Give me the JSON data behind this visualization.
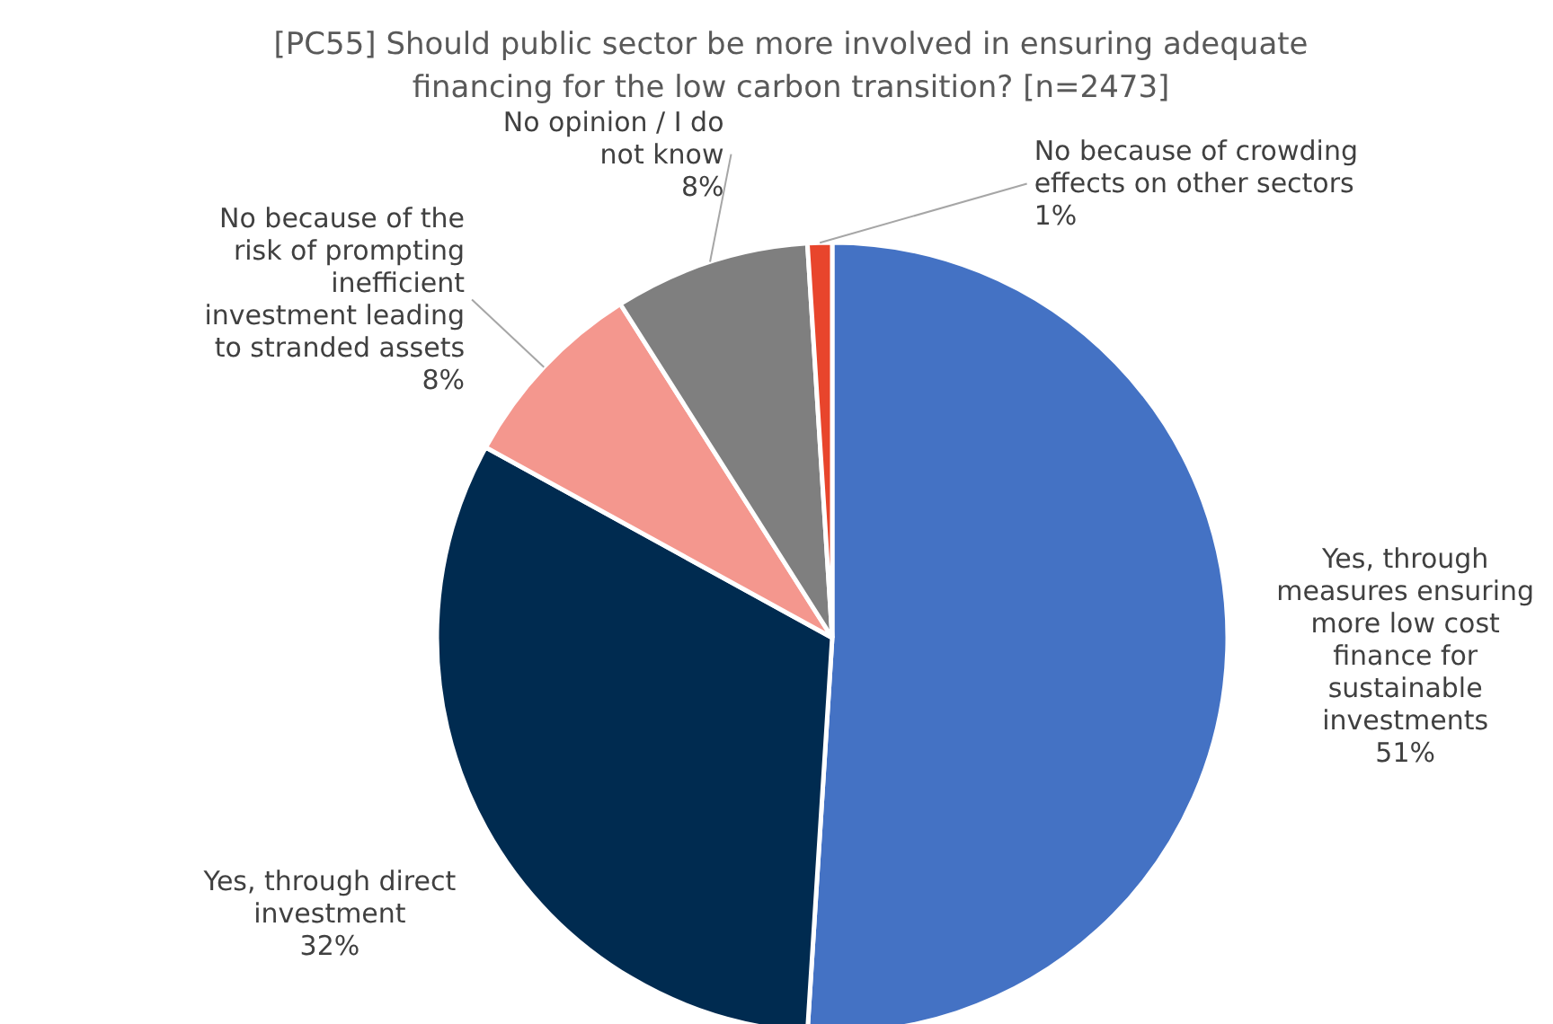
{
  "chart_data": {
    "type": "pie",
    "title": "[PC55] Should public sector be more involved in ensuring adequate financing for the low carbon transition? [n=2473]",
    "categories": [
      "Yes, through measures ensuring more low cost finance for sustainable investments",
      "Yes, through direct investment",
      "No because of the risk of prompting inefficient investment leading to stranded assets",
      "No opinion / I do not know",
      "No because of crowding effects on other sectors"
    ],
    "values": [
      51,
      32,
      8,
      8,
      1
    ],
    "value_labels": [
      "51%",
      "32%",
      "8%",
      "8%",
      "1%"
    ],
    "colors": [
      "#4472c4",
      "#002b50",
      "#f4978e",
      "#7f7f7f",
      "#e8452c"
    ]
  }
}
